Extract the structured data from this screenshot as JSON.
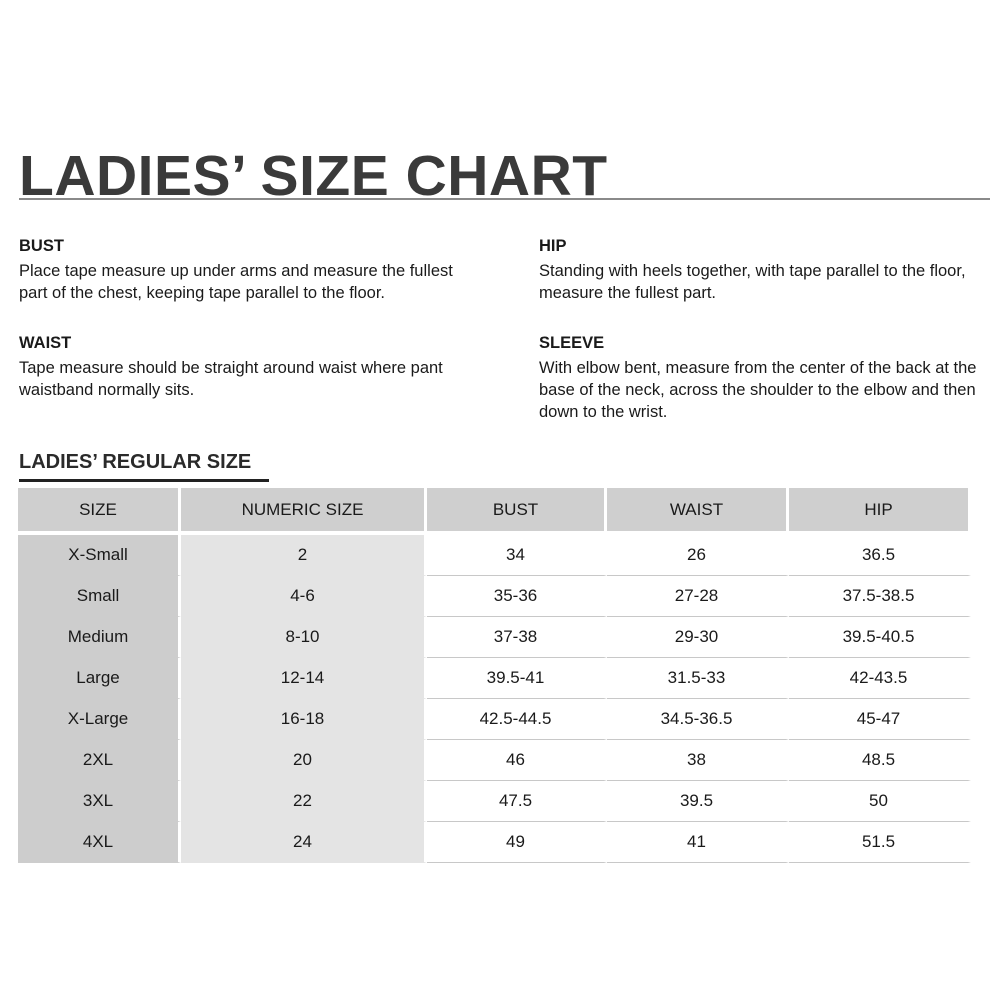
{
  "title": "LADIES’ SIZE CHART",
  "instructions": [
    {
      "heading": "BUST",
      "text": "Place tape measure up under arms and measure the fullest part of the chest, keeping tape parallel to the floor."
    },
    {
      "heading": "WAIST",
      "text": "Tape measure should be straight around waist where pant waistband normally sits."
    },
    {
      "heading": "HIP",
      "text": "Standing with heels together, with tape parallel to the floor, measure the fullest part."
    },
    {
      "heading": "SLEEVE",
      "text": "With elbow bent, measure from the center of the back at the base of the neck, across the shoulder to the elbow and then down to the wrist."
    }
  ],
  "table_title": "LADIES’ REGULAR SIZE",
  "table": {
    "headers": [
      "SIZE",
      "NUMERIC SIZE",
      "BUST",
      "WAIST",
      "HIP"
    ],
    "rows": [
      [
        "X-Small",
        "2",
        "34",
        "26",
        "36.5"
      ],
      [
        "Small",
        "4-6",
        "35-36",
        "27-28",
        "37.5-38.5"
      ],
      [
        "Medium",
        "8-10",
        "37-38",
        "29-30",
        "39.5-40.5"
      ],
      [
        "Large",
        "12-14",
        "39.5-41",
        "31.5-33",
        "42-43.5"
      ],
      [
        "X-Large",
        "16-18",
        "42.5-44.5",
        "34.5-36.5",
        "45-47"
      ],
      [
        "2XL",
        "20",
        "46",
        "38",
        "48.5"
      ],
      [
        "3XL",
        "22",
        "47.5",
        "39.5",
        "50"
      ],
      [
        "4XL",
        "24",
        "49",
        "41",
        "51.5"
      ]
    ]
  }
}
